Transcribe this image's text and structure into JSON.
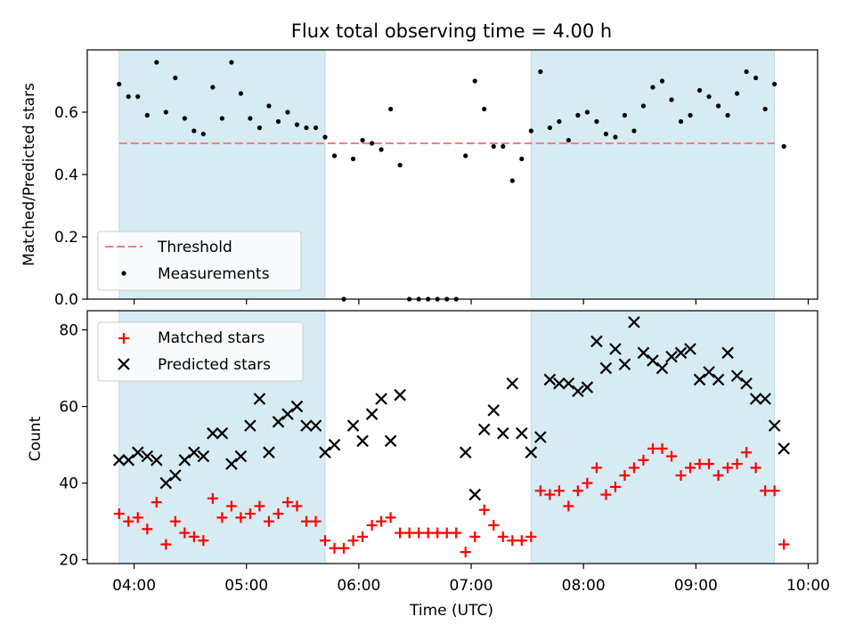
{
  "chart_data": [
    {
      "type": "scatter",
      "title": "Flux total observing time = 4.00 h",
      "xlabel": "",
      "ylabel": "Matched/Predicted stars",
      "xlim": [
        "03:35",
        "10:05"
      ],
      "ylim": [
        0,
        0.8
      ],
      "yticks": [
        "0.0",
        "0.2",
        "0.4",
        "0.6"
      ],
      "grid": false,
      "legend_position": "lower-left",
      "shaded_intervals": [
        [
          "03:52",
          "05:42"
        ],
        [
          "07:32",
          "09:42"
        ]
      ],
      "threshold": {
        "name": "Threshold",
        "value": 0.5,
        "x_range": [
          "03:52",
          "09:42"
        ],
        "color": "#f08080"
      },
      "series": [
        {
          "name": "Measurements",
          "color": "#000000",
          "points": [
            [
              "03:52",
              0.69
            ],
            [
              "03:57",
              0.65
            ],
            [
              "04:02",
              0.65
            ],
            [
              "04:07",
              0.59
            ],
            [
              "04:12",
              0.76
            ],
            [
              "04:17",
              0.6
            ],
            [
              "04:22",
              0.71
            ],
            [
              "04:27",
              0.58
            ],
            [
              "04:32",
              0.54
            ],
            [
              "04:37",
              0.53
            ],
            [
              "04:42",
              0.68
            ],
            [
              "04:47",
              0.58
            ],
            [
              "04:52",
              0.76
            ],
            [
              "04:57",
              0.66
            ],
            [
              "05:02",
              0.58
            ],
            [
              "05:07",
              0.55
            ],
            [
              "05:12",
              0.62
            ],
            [
              "05:17",
              0.57
            ],
            [
              "05:22",
              0.6
            ],
            [
              "05:27",
              0.56
            ],
            [
              "05:32",
              0.55
            ],
            [
              "05:37",
              0.55
            ],
            [
              "05:42",
              0.52
            ],
            [
              "05:47",
              0.46
            ],
            [
              "05:52",
              0.0
            ],
            [
              "05:57",
              0.45
            ],
            [
              "06:02",
              0.51
            ],
            [
              "06:07",
              0.5
            ],
            [
              "06:12",
              0.48
            ],
            [
              "06:17",
              0.61
            ],
            [
              "06:22",
              0.43
            ],
            [
              "06:27",
              0.0
            ],
            [
              "06:32",
              0.0
            ],
            [
              "06:37",
              0.0
            ],
            [
              "06:42",
              0.0
            ],
            [
              "06:47",
              0.0
            ],
            [
              "06:52",
              0.0
            ],
            [
              "06:57",
              0.46
            ],
            [
              "07:02",
              0.7
            ],
            [
              "07:07",
              0.61
            ],
            [
              "07:12",
              0.49
            ],
            [
              "07:17",
              0.49
            ],
            [
              "07:22",
              0.38
            ],
            [
              "07:27",
              0.45
            ],
            [
              "07:32",
              0.54
            ],
            [
              "07:37",
              0.73
            ],
            [
              "07:42",
              0.55
            ],
            [
              "07:47",
              0.57
            ],
            [
              "07:52",
              0.51
            ],
            [
              "07:57",
              0.59
            ],
            [
              "08:02",
              0.6
            ],
            [
              "08:07",
              0.57
            ],
            [
              "08:12",
              0.53
            ],
            [
              "08:17",
              0.52
            ],
            [
              "08:22",
              0.59
            ],
            [
              "08:27",
              0.54
            ],
            [
              "08:32",
              0.62
            ],
            [
              "08:37",
              0.68
            ],
            [
              "08:42",
              0.7
            ],
            [
              "08:47",
              0.64
            ],
            [
              "08:52",
              0.57
            ],
            [
              "08:57",
              0.59
            ],
            [
              "09:02",
              0.67
            ],
            [
              "09:07",
              0.65
            ],
            [
              "09:12",
              0.62
            ],
            [
              "09:17",
              0.59
            ],
            [
              "09:22",
              0.66
            ],
            [
              "09:27",
              0.73
            ],
            [
              "09:32",
              0.71
            ],
            [
              "09:37",
              0.61
            ],
            [
              "09:42",
              0.69
            ],
            [
              "09:47",
              0.49
            ]
          ]
        }
      ]
    },
    {
      "type": "scatter",
      "title": "",
      "xlabel": "Time (UTC)",
      "ylabel": "Count",
      "xlim": [
        "03:35",
        "10:05"
      ],
      "ylim": [
        19,
        85
      ],
      "yticks": [
        "20",
        "40",
        "60",
        "80"
      ],
      "xticks": [
        "04:00",
        "05:00",
        "06:00",
        "07:00",
        "08:00",
        "09:00",
        "10:00"
      ],
      "grid": false,
      "legend_position": "upper-left",
      "shaded_intervals": [
        [
          "03:52",
          "05:42"
        ],
        [
          "07:32",
          "09:42"
        ]
      ],
      "series": [
        {
          "name": "Matched stars",
          "marker": "plus",
          "color": "#ff0000",
          "points": [
            [
              "03:52",
              32
            ],
            [
              "03:57",
              30
            ],
            [
              "04:02",
              31
            ],
            [
              "04:07",
              28
            ],
            [
              "04:12",
              35
            ],
            [
              "04:17",
              24
            ],
            [
              "04:22",
              30
            ],
            [
              "04:27",
              27
            ],
            [
              "04:32",
              26
            ],
            [
              "04:37",
              25
            ],
            [
              "04:42",
              36
            ],
            [
              "04:47",
              31
            ],
            [
              "04:52",
              34
            ],
            [
              "04:57",
              31
            ],
            [
              "05:02",
              32
            ],
            [
              "05:07",
              34
            ],
            [
              "05:12",
              30
            ],
            [
              "05:17",
              32
            ],
            [
              "05:22",
              35
            ],
            [
              "05:27",
              34
            ],
            [
              "05:32",
              30
            ],
            [
              "05:37",
              30
            ],
            [
              "05:42",
              25
            ],
            [
              "05:47",
              23
            ],
            [
              "05:52",
              23
            ],
            [
              "05:57",
              25
            ],
            [
              "06:02",
              26
            ],
            [
              "06:07",
              29
            ],
            [
              "06:12",
              30
            ],
            [
              "06:17",
              31
            ],
            [
              "06:22",
              27
            ],
            [
              "06:27",
              27
            ],
            [
              "06:32",
              27
            ],
            [
              "06:37",
              27
            ],
            [
              "06:42",
              27
            ],
            [
              "06:47",
              27
            ],
            [
              "06:52",
              27
            ],
            [
              "06:57",
              22
            ],
            [
              "07:02",
              26
            ],
            [
              "07:07",
              33
            ],
            [
              "07:12",
              29
            ],
            [
              "07:17",
              26
            ],
            [
              "07:22",
              25
            ],
            [
              "07:27",
              25
            ],
            [
              "07:32",
              26
            ],
            [
              "07:37",
              38
            ],
            [
              "07:42",
              37
            ],
            [
              "07:47",
              38
            ],
            [
              "07:52",
              34
            ],
            [
              "07:57",
              38
            ],
            [
              "08:02",
              40
            ],
            [
              "08:07",
              44
            ],
            [
              "08:12",
              37
            ],
            [
              "08:17",
              39
            ],
            [
              "08:22",
              42
            ],
            [
              "08:27",
              44
            ],
            [
              "08:32",
              46
            ],
            [
              "08:37",
              49
            ],
            [
              "08:42",
              49
            ],
            [
              "08:47",
              47
            ],
            [
              "08:52",
              42
            ],
            [
              "08:57",
              44
            ],
            [
              "09:02",
              45
            ],
            [
              "09:07",
              45
            ],
            [
              "09:12",
              42
            ],
            [
              "09:17",
              44
            ],
            [
              "09:22",
              45
            ],
            [
              "09:27",
              48
            ],
            [
              "09:32",
              44
            ],
            [
              "09:37",
              38
            ],
            [
              "09:42",
              38
            ],
            [
              "09:47",
              24
            ]
          ]
        },
        {
          "name": "Predicted stars",
          "marker": "x",
          "color": "#000000",
          "points": [
            [
              "03:52",
              46
            ],
            [
              "03:57",
              46
            ],
            [
              "04:02",
              48
            ],
            [
              "04:07",
              47
            ],
            [
              "04:12",
              46
            ],
            [
              "04:17",
              40
            ],
            [
              "04:22",
              42
            ],
            [
              "04:27",
              46
            ],
            [
              "04:32",
              48
            ],
            [
              "04:37",
              47
            ],
            [
              "04:42",
              53
            ],
            [
              "04:47",
              53
            ],
            [
              "04:52",
              45
            ],
            [
              "04:57",
              47
            ],
            [
              "05:02",
              55
            ],
            [
              "05:07",
              62
            ],
            [
              "05:12",
              48
            ],
            [
              "05:17",
              56
            ],
            [
              "05:22",
              58
            ],
            [
              "05:27",
              60
            ],
            [
              "05:32",
              55
            ],
            [
              "05:37",
              55
            ],
            [
              "05:42",
              48
            ],
            [
              "05:47",
              50
            ],
            [
              "05:57",
              55
            ],
            [
              "06:02",
              51
            ],
            [
              "06:07",
              58
            ],
            [
              "06:12",
              62
            ],
            [
              "06:17",
              51
            ],
            [
              "06:22",
              63
            ],
            [
              "06:57",
              48
            ],
            [
              "07:02",
              37
            ],
            [
              "07:07",
              54
            ],
            [
              "07:12",
              59
            ],
            [
              "07:17",
              53
            ],
            [
              "07:22",
              66
            ],
            [
              "07:27",
              53
            ],
            [
              "07:32",
              48
            ],
            [
              "07:37",
              52
            ],
            [
              "07:42",
              67
            ],
            [
              "07:47",
              66
            ],
            [
              "07:52",
              66
            ],
            [
              "07:57",
              64
            ],
            [
              "08:02",
              65
            ],
            [
              "08:07",
              77
            ],
            [
              "08:12",
              70
            ],
            [
              "08:17",
              75
            ],
            [
              "08:22",
              71
            ],
            [
              "08:27",
              82
            ],
            [
              "08:32",
              74
            ],
            [
              "08:37",
              72
            ],
            [
              "08:42",
              70
            ],
            [
              "08:47",
              73
            ],
            [
              "08:52",
              74
            ],
            [
              "08:57",
              75
            ],
            [
              "09:02",
              67
            ],
            [
              "09:07",
              69
            ],
            [
              "09:12",
              67
            ],
            [
              "09:17",
              74
            ],
            [
              "09:22",
              68
            ],
            [
              "09:27",
              66
            ],
            [
              "09:32",
              62
            ],
            [
              "09:37",
              62
            ],
            [
              "09:42",
              55
            ],
            [
              "09:47",
              49
            ]
          ]
        }
      ]
    }
  ]
}
